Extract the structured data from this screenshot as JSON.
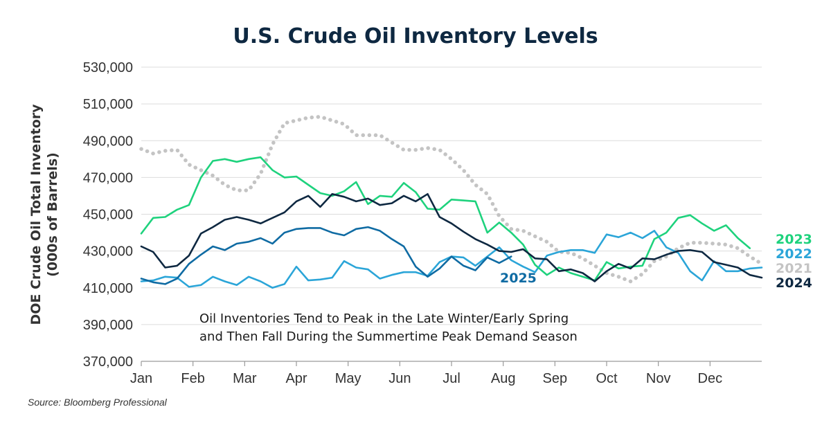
{
  "chart_data": {
    "type": "line",
    "title": "U.S. Crude Oil Inventory Levels",
    "ylabel_line1": "DOE Crude Oil Total Inventory",
    "ylabel_line2": "(000s of Barrels)",
    "xlabel": "",
    "ylim": [
      370000,
      530000
    ],
    "yticks": [
      370000,
      390000,
      410000,
      430000,
      450000,
      470000,
      490000,
      510000,
      530000
    ],
    "ytick_labels": [
      "370,000",
      "390,000",
      "410,000",
      "430,000",
      "450,000",
      "470,000",
      "490,000",
      "510,000",
      "530,000"
    ],
    "month_labels": [
      "Jan",
      "Feb",
      "Mar",
      "Apr",
      "May",
      "Jun",
      "Jul",
      "Aug",
      "Sep",
      "Oct",
      "Nov",
      "Dec"
    ],
    "x_unit": "week of year",
    "xlim": [
      1,
      53
    ],
    "grid": true,
    "annotation_line1": "Oil Inventories Tend to Peak in the Late Winter/Early Spring",
    "annotation_line2": "and Then Fall During the Summertime Peak Demand Season",
    "source": "Source: Bloomberg Professional",
    "series": [
      {
        "name": "2021",
        "color": "#c4c4c4",
        "style": "dotted",
        "values": [
          485500,
          483000,
          484500,
          485000,
          477000,
          474000,
          471000,
          466000,
          463000,
          463000,
          472000,
          488000,
          499500,
          501000,
          502500,
          503000,
          501000,
          499000,
          493000,
          493000,
          493000,
          489000,
          485000,
          485000,
          486000,
          485000,
          480000,
          474000,
          466000,
          461000,
          449000,
          442000,
          441000,
          438000,
          435000,
          429500,
          429000,
          426000,
          422000,
          418000,
          416000,
          413500,
          417500,
          424500,
          427000,
          431500,
          434500,
          434500,
          434000,
          433500,
          431500,
          427000,
          423000
        ]
      },
      {
        "name": "2022",
        "color": "#2ba5d8",
        "style": "solid",
        "values": [
          413500,
          414000,
          416000,
          415500,
          410500,
          411500,
          416000,
          413500,
          411500,
          416000,
          413500,
          410000,
          412000,
          421500,
          414000,
          414500,
          415500,
          424500,
          421000,
          420000,
          415000,
          417000,
          418500,
          418500,
          416500,
          424000,
          427000,
          426500,
          422000,
          427000,
          432000,
          425000,
          421500,
          418500,
          427500,
          429500,
          430500,
          430500,
          429000,
          439000,
          437500,
          440000,
          437000,
          441000,
          432000,
          429000,
          419000,
          414000,
          424500,
          419000,
          419000,
          420500,
          421000
        ]
      },
      {
        "name": "2023",
        "color": "#1ed27d",
        "style": "solid",
        "values": [
          439500,
          448000,
          448500,
          452500,
          455000,
          470000,
          479000,
          480000,
          478500,
          480000,
          481000,
          474000,
          470000,
          470500,
          466000,
          461500,
          460000,
          462500,
          467500,
          455500,
          460000,
          459500,
          467000,
          462000,
          453000,
          452500,
          458000,
          457500,
          457000,
          440000,
          445500,
          440000,
          433500,
          422500,
          417000,
          421000,
          418000,
          416000,
          414000,
          424000,
          420500,
          421500,
          422000,
          436500,
          440000,
          448000,
          449500,
          445000,
          441000,
          444000,
          437000,
          431500
        ]
      },
      {
        "name": "2024",
        "color": "#0e2841",
        "style": "solid",
        "values": [
          432500,
          429500,
          421000,
          422000,
          427500,
          439500,
          443000,
          447000,
          448500,
          447000,
          445000,
          448000,
          451000,
          457000,
          460000,
          454000,
          461000,
          459500,
          457000,
          458500,
          455000,
          456000,
          460000,
          457000,
          461000,
          448500,
          445000,
          440500,
          436500,
          433500,
          430000,
          429500,
          431000,
          426000,
          425500,
          419000,
          420000,
          418000,
          413500,
          419000,
          423000,
          420500,
          426000,
          425500,
          428000,
          430000,
          430500,
          429500,
          424000,
          422500,
          421000,
          417000,
          415500
        ]
      },
      {
        "name": "2025",
        "color": "#0f6ba3",
        "style": "solid",
        "values": [
          415000,
          413000,
          412000,
          415000,
          423000,
          428000,
          432500,
          430500,
          434000,
          435000,
          437000,
          434000,
          440000,
          442000,
          442500,
          442500,
          440000,
          438500,
          442000,
          443000,
          441000,
          436500,
          432500,
          421500,
          416000,
          420500,
          427000,
          422000,
          419500,
          426500,
          423500,
          427000
        ]
      }
    ],
    "legend": [
      {
        "label": "2023",
        "color": "#1ed27d"
      },
      {
        "label": "2022",
        "color": "#2ba5d8"
      },
      {
        "label": "2021",
        "color": "#c4c4c4"
      },
      {
        "label": "2024",
        "color": "#0e2841"
      }
    ],
    "inline_label": {
      "label": "2025",
      "color": "#0f6ba3"
    }
  }
}
